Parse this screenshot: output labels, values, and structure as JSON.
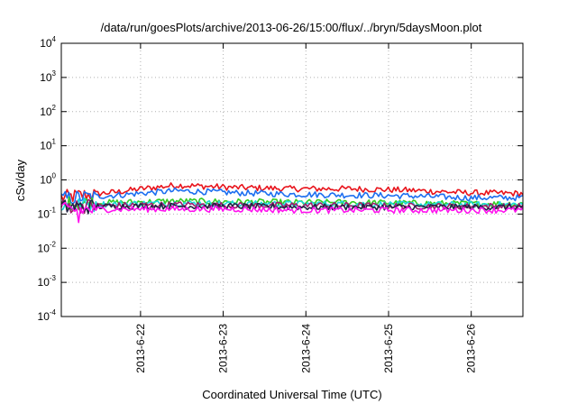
{
  "chart_data": {
    "type": "line",
    "title": "/data/run/goesPlots/archive/2013-06-26/15:00/flux/../bryn/5daysMoon.plot",
    "xlabel": "Coordinated Universal Time (UTC)",
    "ylabel": "cSv/day",
    "yscale": "log",
    "ylim": [
      0.0001,
      10000
    ],
    "y_ticks": [
      {
        "value": 0.0001,
        "base": "10",
        "exp": "-4"
      },
      {
        "value": 0.001,
        "base": "10",
        "exp": "-3"
      },
      {
        "value": 0.01,
        "base": "10",
        "exp": "-2"
      },
      {
        "value": 0.1,
        "base": "10",
        "exp": "-1"
      },
      {
        "value": 1,
        "base": "10",
        "exp": "0"
      },
      {
        "value": 10,
        "base": "10",
        "exp": "1"
      },
      {
        "value": 100,
        "base": "10",
        "exp": "2"
      },
      {
        "value": 1000,
        "base": "10",
        "exp": "3"
      },
      {
        "value": 10000,
        "base": "10",
        "exp": "4"
      }
    ],
    "xlim": [
      "2013-06-21T01:00",
      "2013-06-26T15:00"
    ],
    "x_ticks": [
      {
        "value": "2013-06-22T00:00",
        "label": "2013-6-22"
      },
      {
        "value": "2013-06-23T00:00",
        "label": "2013-6-23"
      },
      {
        "value": "2013-06-24T00:00",
        "label": "2013-6-24"
      },
      {
        "value": "2013-06-25T00:00",
        "label": "2013-6-25"
      },
      {
        "value": "2013-06-26T00:00",
        "label": "2013-6-26"
      }
    ],
    "grid": true,
    "series": [
      {
        "color": "#e8141c",
        "level": [
          0.3,
          0.45,
          0.7,
          0.6,
          0.55,
          0.55,
          0.5,
          0.42,
          0.4
        ]
      },
      {
        "color": "#1d6ff0",
        "level": [
          0.28,
          0.36,
          0.48,
          0.42,
          0.38,
          0.36,
          0.34,
          0.3,
          0.3
        ]
      },
      {
        "color": "#33cc22",
        "level": [
          0.2,
          0.22,
          0.24,
          0.23,
          0.22,
          0.22,
          0.21,
          0.2,
          0.2
        ]
      },
      {
        "color": "#1ad9d9",
        "level": [
          0.18,
          0.2,
          0.21,
          0.2,
          0.2,
          0.2,
          0.19,
          0.19,
          0.19
        ]
      },
      {
        "color": "#a11a6e",
        "level": [
          0.17,
          0.18,
          0.19,
          0.18,
          0.18,
          0.18,
          0.17,
          0.17,
          0.17
        ]
      },
      {
        "color": "#222244",
        "level": [
          0.16,
          0.17,
          0.17,
          0.17,
          0.16,
          0.16,
          0.16,
          0.16,
          0.16
        ]
      },
      {
        "color": "#ff11ee",
        "level": [
          0.13,
          0.14,
          0.14,
          0.14,
          0.13,
          0.13,
          0.13,
          0.13,
          0.13
        ]
      }
    ]
  }
}
